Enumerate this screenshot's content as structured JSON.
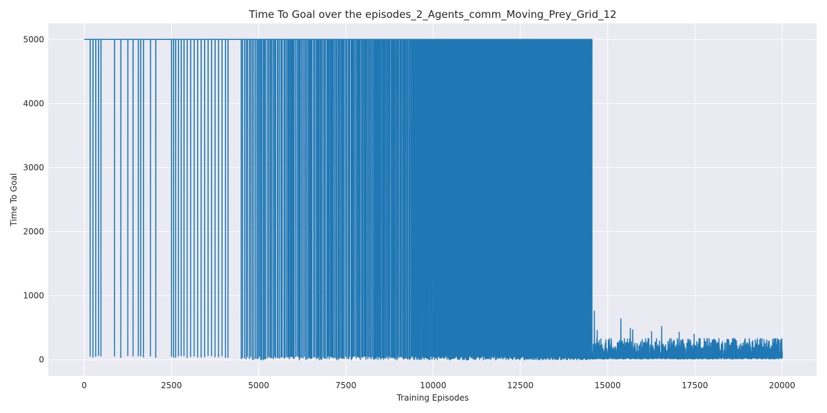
{
  "chart_data": {
    "type": "line",
    "title": "Time To Goal over the episodes_2_Agents_comm_Moving_Prey_Grid_12",
    "xlabel": "Training Episodes",
    "ylabel": "Time To Goal",
    "xlim": [
      -1030,
      20990
    ],
    "ylim": [
      -250,
      5250
    ],
    "x_ticks": [
      0,
      2500,
      5000,
      7500,
      10000,
      12500,
      15000,
      17500,
      20000
    ],
    "x_tick_labels": [
      "0",
      "2500",
      "5000",
      "7500",
      "10000",
      "12500",
      "15000",
      "17500",
      "20000"
    ],
    "y_ticks": [
      0,
      1000,
      2000,
      3000,
      4000,
      5000
    ],
    "y_tick_labels": [
      "0",
      "1000",
      "2000",
      "3000",
      "4000",
      "5000"
    ],
    "grid": true,
    "background": "#eaeaf2",
    "line_color": "#1f77b4",
    "series": [
      {
        "episodes_range": [
          0,
          20000
        ],
        "cap_value": 5000,
        "sparse_drop_episodes": [
          170,
          250,
          330,
          410,
          480,
          870,
          1050,
          1250,
          1400,
          1550,
          1620,
          1700,
          1900,
          2050,
          2500,
          2560,
          2620,
          2700,
          2780,
          2860,
          2950,
          3050,
          3150,
          3250,
          3350,
          3450,
          3550,
          3650,
          3750,
          3850,
          3950,
          4050,
          4120
        ],
        "dense_region_start": 4500,
        "dense_region_end": 14550,
        "dense_region_drop_min": 0,
        "post_converged_range": [
          14550,
          20000
        ],
        "post_converged_mean": 180,
        "post_converged_max": 330,
        "post_spikes": [
          {
            "x": 14620,
            "y": 760
          },
          {
            "x": 14540,
            "y": 560
          },
          {
            "x": 14700,
            "y": 460
          },
          {
            "x": 15380,
            "y": 640
          },
          {
            "x": 15650,
            "y": 490
          },
          {
            "x": 15720,
            "y": 470
          },
          {
            "x": 16550,
            "y": 520
          },
          {
            "x": 16260,
            "y": 440
          },
          {
            "x": 17050,
            "y": 430
          },
          {
            "x": 17480,
            "y": 400
          }
        ]
      }
    ]
  }
}
